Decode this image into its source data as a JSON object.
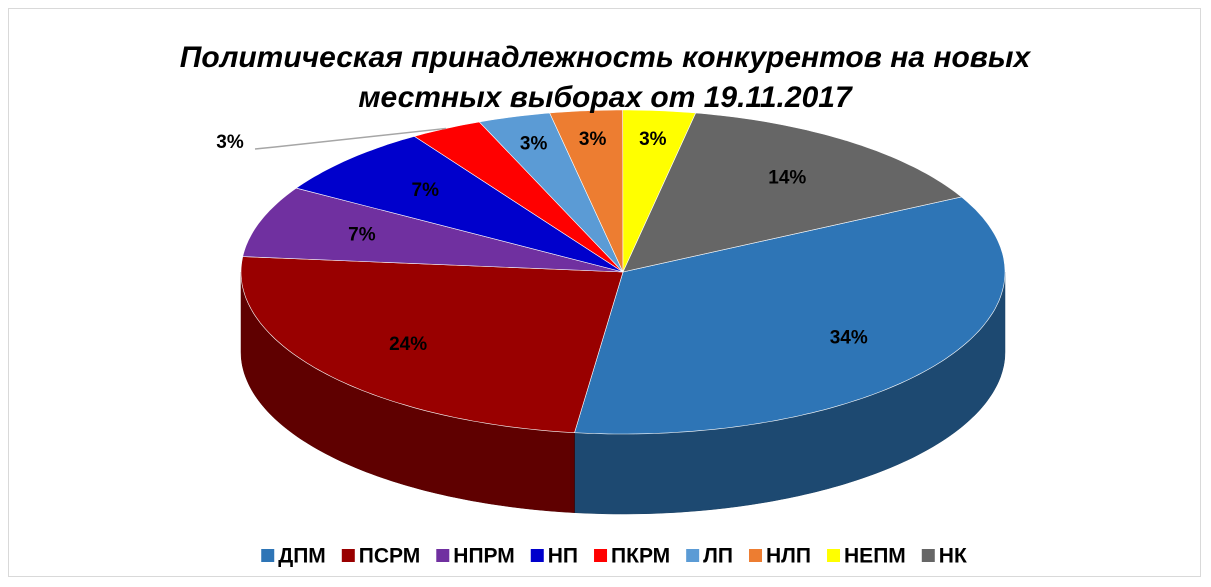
{
  "chart_data": {
    "type": "pie3d",
    "title": "Политическая  принадлежность конкурентов на новых местных выборах от 19.11.2017",
    "categories": [
      "ДПМ",
      "ПСРМ",
      "НПРМ",
      "НП",
      "ПКРМ",
      "ЛП",
      "НЛП",
      "НЕПМ",
      "НК"
    ],
    "values": [
      34,
      24,
      7,
      7,
      3,
      3,
      3,
      3,
      14
    ],
    "value_labels": [
      "34%",
      "24%",
      "7%",
      "7%",
      "3%",
      "3%",
      "3%",
      "3%",
      "14%"
    ],
    "colors": [
      "#2e75b6",
      "#990000",
      "#7030a0",
      "#0000cc",
      "#ff0000",
      "#5b9bd5",
      "#ed7d31",
      "#ffff00",
      "#666666"
    ],
    "legend": "bottom"
  }
}
